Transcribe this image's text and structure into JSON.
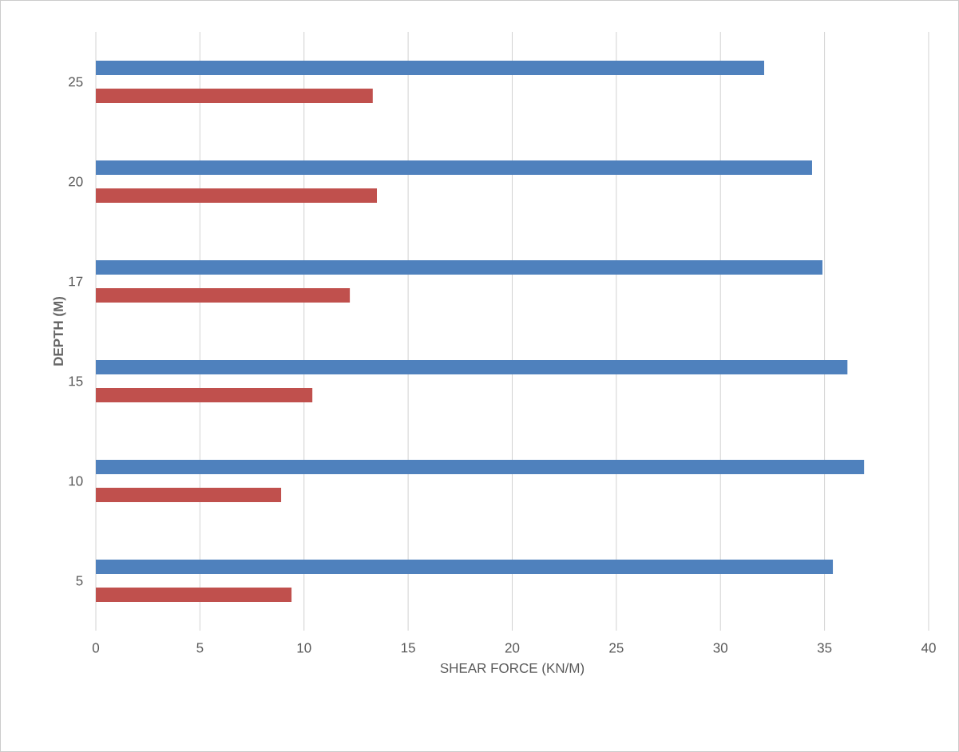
{
  "chart_data": {
    "type": "bar",
    "orientation": "horizontal",
    "xlabel": "SHEAR FORCE (KN/M)",
    "ylabel": "DEPTH (M)",
    "categories": [
      "25",
      "20",
      "17",
      "15",
      "10",
      "5"
    ],
    "series": [
      {
        "color": "#4f81bd",
        "values": [
          32.1,
          34.4,
          34.9,
          36.1,
          36.9,
          35.4
        ]
      },
      {
        "color": "#c0504d",
        "values": [
          13.3,
          13.5,
          12.2,
          10.4,
          8.9,
          9.4
        ]
      }
    ],
    "xlim": [
      0,
      40
    ],
    "xticks": [
      0,
      5,
      10,
      15,
      20,
      25,
      30,
      35,
      40
    ],
    "grid": "x"
  }
}
